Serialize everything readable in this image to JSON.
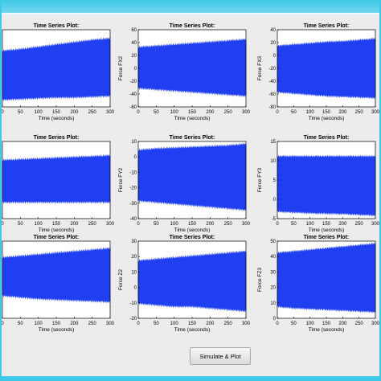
{
  "window": {
    "accent": "#3ec9e8",
    "background": "#ececec"
  },
  "button": {
    "simulate_label": "Simulate & Plot"
  },
  "chart_data": [
    {
      "type": "area",
      "title": "Time Series Plot:",
      "xlabel": "Time (seconds)",
      "ylabel": "",
      "xlim": [
        0,
        300
      ],
      "ylim": null,
      "x_ticks": [
        "0",
        "50",
        "100",
        "150",
        "200",
        "250",
        "300"
      ],
      "y_ticks": [],
      "series": [
        {
          "color": "#1f3ff0",
          "x": [
            0,
            50,
            100,
            150,
            200,
            250,
            300
          ],
          "upper": [
            0.72,
            0.74,
            0.77,
            0.8,
            0.83,
            0.86,
            0.88
          ],
          "lower": [
            0.1,
            0.11,
            0.12,
            0.13,
            0.13,
            0.14,
            0.15
          ]
        }
      ]
    },
    {
      "type": "area",
      "title": "Time Series Plot:",
      "xlabel": "Time (seconds)",
      "ylabel": "Force FX2",
      "xlim": [
        0,
        300
      ],
      "ylim": [
        -60,
        60
      ],
      "x_ticks": [
        "0",
        "50",
        "100",
        "150",
        "200",
        "250",
        "300"
      ],
      "y_ticks": [
        "60",
        "40",
        "20",
        "0",
        "-20",
        "-40",
        "-60"
      ],
      "series": [
        {
          "color": "#1f3ff0",
          "x": [
            0,
            50,
            100,
            150,
            200,
            250,
            300
          ],
          "upper": [
            32,
            34,
            36,
            38,
            40,
            42,
            44
          ],
          "lower": [
            -30,
            -32,
            -34,
            -36,
            -38,
            -40,
            -42
          ]
        }
      ]
    },
    {
      "type": "area",
      "title": "Time Series Plot:",
      "xlabel": "Time (seconds)",
      "ylabel": "Force FX3",
      "xlim": [
        0,
        300
      ],
      "ylim": [
        -80,
        40
      ],
      "x_ticks": [
        "0",
        "50",
        "100",
        "150",
        "200",
        "250",
        "300"
      ],
      "y_ticks": [
        "40",
        "20",
        "0",
        "-20",
        "-40",
        "-60",
        "-80"
      ],
      "series": [
        {
          "color": "#1f3ff0",
          "x": [
            0,
            50,
            100,
            150,
            200,
            250,
            300
          ],
          "upper": [
            14,
            16,
            18,
            20,
            21,
            23,
            25
          ],
          "lower": [
            -56,
            -58,
            -60,
            -62,
            -63,
            -64,
            -65
          ]
        }
      ]
    },
    {
      "type": "area",
      "title": "Time Series Plot:",
      "xlabel": "Time (seconds)",
      "ylabel": "",
      "xlim": [
        0,
        300
      ],
      "ylim": null,
      "x_ticks": [
        "0",
        "50",
        "100",
        "150",
        "200",
        "250",
        "300"
      ],
      "y_ticks": [],
      "series": [
        {
          "color": "#1f3ff0",
          "x": [
            0,
            50,
            100,
            150,
            200,
            250,
            300
          ],
          "upper": [
            0.75,
            0.76,
            0.77,
            0.78,
            0.79,
            0.8,
            0.81
          ],
          "lower": [
            0.22,
            0.22,
            0.22,
            0.22,
            0.22,
            0.22,
            0.22
          ]
        }
      ]
    },
    {
      "type": "area",
      "title": "Time Series Plot:",
      "xlabel": "Time (seconds)",
      "ylabel": "Force FY2",
      "xlim": [
        0,
        300
      ],
      "ylim": [
        -40,
        10
      ],
      "x_ticks": [
        "0",
        "50",
        "100",
        "150",
        "200",
        "250",
        "300"
      ],
      "y_ticks": [
        "10",
        "0",
        "-10",
        "-20",
        "-30",
        "-40"
      ],
      "series": [
        {
          "color": "#1f3ff0",
          "x": [
            0,
            50,
            100,
            150,
            200,
            250,
            300
          ],
          "upper": [
            4,
            5,
            5.5,
            6,
            6.5,
            7,
            8
          ],
          "lower": [
            -28,
            -29,
            -30,
            -31,
            -32,
            -33,
            -34
          ]
        }
      ]
    },
    {
      "type": "area",
      "title": "Time Series Plot:",
      "xlabel": "Time (seconds)",
      "ylabel": "Force FY3",
      "xlim": [
        0,
        300
      ],
      "ylim": [
        -5,
        15
      ],
      "x_ticks": [
        "0",
        "50",
        "100",
        "150",
        "200",
        "250",
        "300"
      ],
      "y_ticks": [
        "15",
        "10",
        "5",
        "0",
        "-5"
      ],
      "series": [
        {
          "color": "#1f3ff0",
          "x": [
            0,
            50,
            100,
            150,
            200,
            250,
            300
          ],
          "upper": [
            11,
            11,
            11,
            11,
            11,
            11,
            11
          ],
          "lower": [
            -3,
            -3.2,
            -3.4,
            -3.5,
            -3.6,
            -3.8,
            -4
          ]
        }
      ]
    },
    {
      "type": "area",
      "title": "Time Series Plot:",
      "xlabel": "Time (seconds)",
      "ylabel": "",
      "xlim": [
        0,
        300
      ],
      "ylim": null,
      "x_ticks": [
        "0",
        "50",
        "100",
        "150",
        "200",
        "250",
        "300"
      ],
      "y_ticks": [],
      "series": [
        {
          "color": "#1f3ff0",
          "x": [
            0,
            50,
            100,
            150,
            200,
            250,
            300
          ],
          "upper": [
            0.78,
            0.8,
            0.82,
            0.84,
            0.86,
            0.88,
            0.9
          ],
          "lower": [
            0.3,
            0.28,
            0.26,
            0.25,
            0.24,
            0.23,
            0.22
          ]
        }
      ]
    },
    {
      "type": "area",
      "title": "Time Series Plot:",
      "xlabel": "Time (seconds)",
      "ylabel": "Force Z2",
      "xlim": [
        0,
        300
      ],
      "ylim": [
        -20,
        30
      ],
      "x_ticks": [
        "0",
        "50",
        "100",
        "150",
        "200",
        "250",
        "300"
      ],
      "y_ticks": [
        "30",
        "20",
        "10",
        "0",
        "-10",
        "-20"
      ],
      "series": [
        {
          "color": "#1f3ff0",
          "x": [
            0,
            50,
            100,
            150,
            200,
            250,
            300
          ],
          "upper": [
            17,
            18,
            19,
            20,
            21,
            22,
            23
          ],
          "lower": [
            -10,
            -11,
            -12,
            -12,
            -13,
            -14,
            -15
          ]
        }
      ]
    },
    {
      "type": "area",
      "title": "Time Series Plot:",
      "xlabel": "Time (seconds)",
      "ylabel": "Force FZ3",
      "xlim": [
        0,
        300
      ],
      "ylim": [
        0,
        50
      ],
      "x_ticks": [
        "0",
        "50",
        "100",
        "150",
        "200",
        "250",
        "300"
      ],
      "y_ticks": [
        "50",
        "40",
        "30",
        "20",
        "10",
        "0"
      ],
      "series": [
        {
          "color": "#1f3ff0",
          "x": [
            0,
            50,
            100,
            150,
            200,
            250,
            300
          ],
          "upper": [
            42,
            43,
            44,
            45,
            46,
            47,
            48
          ],
          "lower": [
            8,
            7,
            6.5,
            6,
            5.5,
            5,
            4.5
          ]
        }
      ]
    }
  ]
}
